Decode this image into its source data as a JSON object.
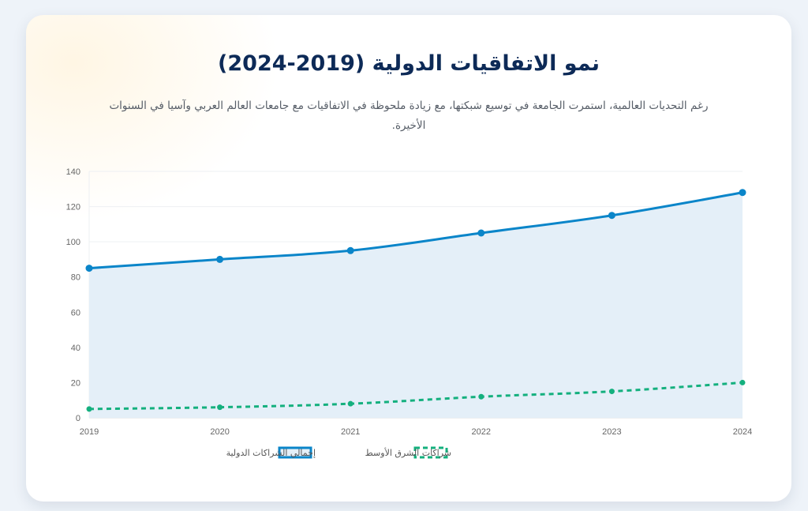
{
  "header": {
    "title": "نمو الاتفاقيات الدولية (2019-2024)",
    "subtitle": "رغم التحديات العالمية، استمرت الجامعة في توسيع شبكتها، مع زيادة ملحوظة في الاتفاقيات مع جامعات العالم العربي وآسيا في السنوات الأخيرة."
  },
  "chart_data": {
    "type": "line",
    "x": [
      "2019",
      "2020",
      "2021",
      "2022",
      "2023",
      "2024"
    ],
    "ylim": [
      0,
      140
    ],
    "yticks": [
      0,
      20,
      40,
      60,
      80,
      100,
      120,
      140
    ],
    "grid": true,
    "legend_position": "bottom",
    "series": [
      {
        "name": "إجمالي الشراكات الدولية",
        "values": [
          85,
          90,
          95,
          105,
          115,
          128
        ],
        "color": "#0a85c9",
        "fill": "#e4eff8",
        "style": "solid-area"
      },
      {
        "name": "شراكات الشرق الأوسط",
        "values": [
          5,
          6,
          8,
          12,
          15,
          20
        ],
        "color": "#14b07e",
        "style": "dashed"
      }
    ]
  }
}
